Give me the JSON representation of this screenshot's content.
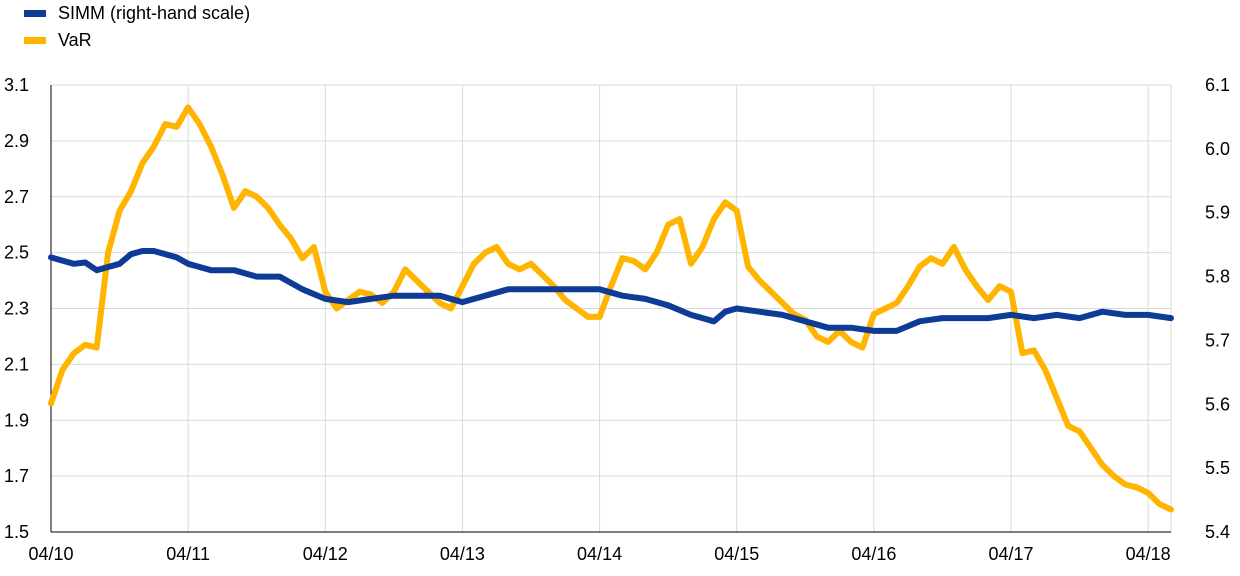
{
  "chart_data": {
    "type": "line",
    "title": "",
    "x_ticks": [
      "04/10",
      "04/11",
      "04/12",
      "04/13",
      "04/14",
      "04/15",
      "04/16",
      "04/17",
      "04/18"
    ],
    "xlim": [
      "2010-04",
      "2018-06"
    ],
    "left_axis": {
      "label": "",
      "ylim": [
        1.5,
        3.1
      ],
      "ticks": [
        "3.1",
        "2.9",
        "2.7",
        "2.5",
        "2.3",
        "2.1",
        "1.9",
        "1.7",
        "1.5"
      ]
    },
    "right_axis": {
      "label": "",
      "ylim": [
        5.4,
        6.1
      ],
      "ticks": [
        "6.1",
        "6.0",
        "5.9",
        "5.8",
        "5.7",
        "5.6",
        "5.5",
        "5.4"
      ]
    },
    "grid": "vertical and horizontal",
    "legend": "top-left",
    "series": [
      {
        "name": "SIMM (right-hand scale)",
        "axis": "right",
        "color": "#0d3b96",
        "points": [
          [
            "2010-04",
            5.83
          ],
          [
            "2010-05",
            5.825
          ],
          [
            "2010-06",
            5.82
          ],
          [
            "2010-07",
            5.822
          ],
          [
            "2010-08",
            5.81
          ],
          [
            "2010-09",
            5.815
          ],
          [
            "2010-10",
            5.82
          ],
          [
            "2010-11",
            5.835
          ],
          [
            "2010-12",
            5.84
          ],
          [
            "2011-01",
            5.84
          ],
          [
            "2011-02",
            5.835
          ],
          [
            "2011-03",
            5.83
          ],
          [
            "2011-04",
            5.82
          ],
          [
            "2011-05",
            5.815
          ],
          [
            "2011-06",
            5.81
          ],
          [
            "2011-08",
            5.81
          ],
          [
            "2011-10",
            5.8
          ],
          [
            "2011-12",
            5.8
          ],
          [
            "2012-02",
            5.78
          ],
          [
            "2012-04",
            5.765
          ],
          [
            "2012-06",
            5.76
          ],
          [
            "2012-08",
            5.765
          ],
          [
            "2012-10",
            5.77
          ],
          [
            "2012-12",
            5.77
          ],
          [
            "2013-02",
            5.77
          ],
          [
            "2013-04",
            5.76
          ],
          [
            "2013-06",
            5.77
          ],
          [
            "2013-08",
            5.78
          ],
          [
            "2013-10",
            5.78
          ],
          [
            "2013-12",
            5.78
          ],
          [
            "2014-02",
            5.78
          ],
          [
            "2014-04",
            5.78
          ],
          [
            "2014-06",
            5.77
          ],
          [
            "2014-08",
            5.765
          ],
          [
            "2014-10",
            5.755
          ],
          [
            "2014-12",
            5.74
          ],
          [
            "2015-02",
            5.73
          ],
          [
            "2015-03",
            5.745
          ],
          [
            "2015-04",
            5.75
          ],
          [
            "2015-06",
            5.745
          ],
          [
            "2015-08",
            5.74
          ],
          [
            "2015-10",
            5.73
          ],
          [
            "2015-12",
            5.72
          ],
          [
            "2016-02",
            5.72
          ],
          [
            "2016-04",
            5.715
          ],
          [
            "2016-06",
            5.715
          ],
          [
            "2016-08",
            5.73
          ],
          [
            "2016-10",
            5.735
          ],
          [
            "2016-12",
            5.735
          ],
          [
            "2017-02",
            5.735
          ],
          [
            "2017-04",
            5.74
          ],
          [
            "2017-06",
            5.735
          ],
          [
            "2017-08",
            5.74
          ],
          [
            "2017-10",
            5.735
          ],
          [
            "2017-12",
            5.745
          ],
          [
            "2018-02",
            5.74
          ],
          [
            "2018-04",
            5.74
          ],
          [
            "2018-06",
            5.735
          ]
        ]
      },
      {
        "name": "VaR",
        "axis": "left",
        "color": "#ffb400",
        "points": [
          [
            "2010-04",
            1.96
          ],
          [
            "2010-05",
            2.08
          ],
          [
            "2010-06",
            2.14
          ],
          [
            "2010-07",
            2.17
          ],
          [
            "2010-08",
            2.16
          ],
          [
            "2010-09",
            2.5
          ],
          [
            "2010-10",
            2.65
          ],
          [
            "2010-11",
            2.72
          ],
          [
            "2010-12",
            2.82
          ],
          [
            "2011-01",
            2.88
          ],
          [
            "2011-02",
            2.96
          ],
          [
            "2011-03",
            2.95
          ],
          [
            "2011-04",
            3.02
          ],
          [
            "2011-05",
            2.96
          ],
          [
            "2011-06",
            2.88
          ],
          [
            "2011-07",
            2.78
          ],
          [
            "2011-08",
            2.66
          ],
          [
            "2011-09",
            2.72
          ],
          [
            "2011-10",
            2.7
          ],
          [
            "2011-11",
            2.66
          ],
          [
            "2011-12",
            2.6
          ],
          [
            "2012-01",
            2.55
          ],
          [
            "2012-02",
            2.48
          ],
          [
            "2012-03",
            2.52
          ],
          [
            "2012-04",
            2.36
          ],
          [
            "2012-05",
            2.3
          ],
          [
            "2012-06",
            2.33
          ],
          [
            "2012-07",
            2.36
          ],
          [
            "2012-08",
            2.35
          ],
          [
            "2012-09",
            2.32
          ],
          [
            "2012-10",
            2.36
          ],
          [
            "2012-11",
            2.44
          ],
          [
            "2012-12",
            2.4
          ],
          [
            "2013-01",
            2.36
          ],
          [
            "2013-02",
            2.32
          ],
          [
            "2013-03",
            2.3
          ],
          [
            "2013-04",
            2.38
          ],
          [
            "2013-05",
            2.46
          ],
          [
            "2013-06",
            2.5
          ],
          [
            "2013-07",
            2.52
          ],
          [
            "2013-08",
            2.46
          ],
          [
            "2013-09",
            2.44
          ],
          [
            "2013-10",
            2.46
          ],
          [
            "2013-11",
            2.42
          ],
          [
            "2013-12",
            2.38
          ],
          [
            "2014-01",
            2.33
          ],
          [
            "2014-02",
            2.3
          ],
          [
            "2014-03",
            2.27
          ],
          [
            "2014-04",
            2.27
          ],
          [
            "2014-05",
            2.38
          ],
          [
            "2014-06",
            2.48
          ],
          [
            "2014-07",
            2.47
          ],
          [
            "2014-08",
            2.44
          ],
          [
            "2014-09",
            2.5
          ],
          [
            "2014-10",
            2.6
          ],
          [
            "2014-11",
            2.62
          ],
          [
            "2014-12",
            2.46
          ],
          [
            "2015-01",
            2.52
          ],
          [
            "2015-02",
            2.62
          ],
          [
            "2015-03",
            2.68
          ],
          [
            "2015-04",
            2.65
          ],
          [
            "2015-05",
            2.45
          ],
          [
            "2015-06",
            2.4
          ],
          [
            "2015-07",
            2.36
          ],
          [
            "2015-08",
            2.32
          ],
          [
            "2015-09",
            2.28
          ],
          [
            "2015-10",
            2.26
          ],
          [
            "2015-11",
            2.2
          ],
          [
            "2015-12",
            2.18
          ],
          [
            "2016-01",
            2.22
          ],
          [
            "2016-02",
            2.18
          ],
          [
            "2016-03",
            2.16
          ],
          [
            "2016-04",
            2.28
          ],
          [
            "2016-05",
            2.3
          ],
          [
            "2016-06",
            2.32
          ],
          [
            "2016-07",
            2.38
          ],
          [
            "2016-08",
            2.45
          ],
          [
            "2016-09",
            2.48
          ],
          [
            "2016-10",
            2.46
          ],
          [
            "2016-11",
            2.52
          ],
          [
            "2016-12",
            2.44
          ],
          [
            "2017-01",
            2.38
          ],
          [
            "2017-02",
            2.33
          ],
          [
            "2017-03",
            2.38
          ],
          [
            "2017-04",
            2.36
          ],
          [
            "2017-05",
            2.14
          ],
          [
            "2017-06",
            2.15
          ],
          [
            "2017-07",
            2.08
          ],
          [
            "2017-08",
            1.98
          ],
          [
            "2017-09",
            1.88
          ],
          [
            "2017-10",
            1.86
          ],
          [
            "2017-11",
            1.8
          ],
          [
            "2017-12",
            1.74
          ],
          [
            "2018-01",
            1.7
          ],
          [
            "2018-02",
            1.67
          ],
          [
            "2018-03",
            1.66
          ],
          [
            "2018-04",
            1.64
          ],
          [
            "2018-05",
            1.6
          ],
          [
            "2018-06",
            1.58
          ]
        ]
      }
    ]
  }
}
